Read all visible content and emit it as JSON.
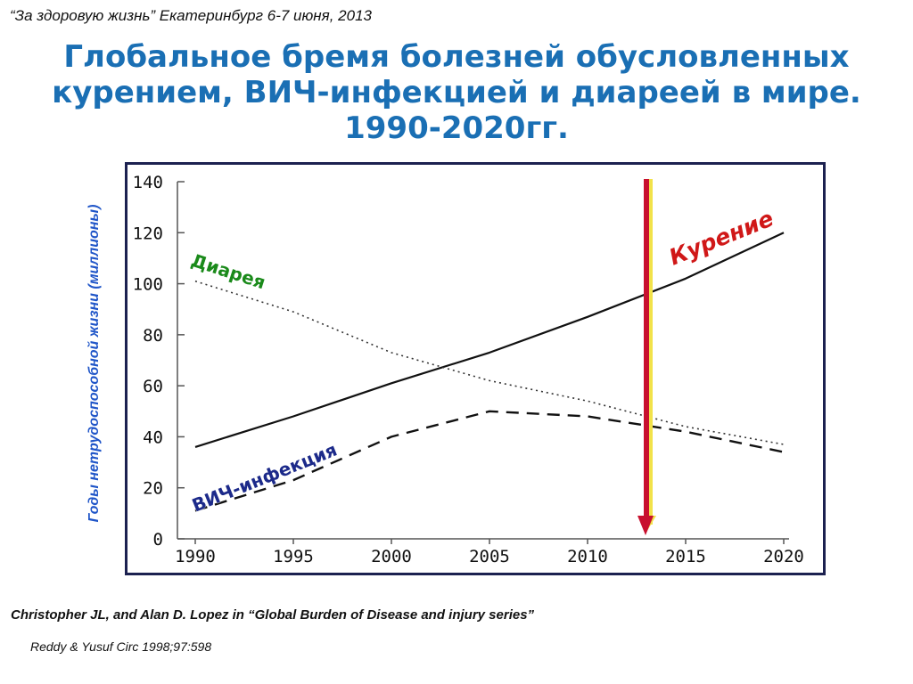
{
  "header": {
    "event": "“За здоровую жизнь”  Екатеринбург 6-7 июня, 2013"
  },
  "title": {
    "line1": "Глобальное бремя болезней обусловленных",
    "line2": "курением, ВИЧ-инфекцией и диареей в мире.",
    "line3": "1990-2020гг."
  },
  "chart_data": {
    "type": "line",
    "ylabel": "Годы нетрудоспособной жизни (миллионы)",
    "xlabel": "",
    "x": [
      1990,
      1995,
      2000,
      2005,
      2010,
      2015,
      2020
    ],
    "x_ticks": [
      "1990",
      "1995",
      "2000",
      "2005",
      "2010",
      "2015",
      "2020"
    ],
    "y_ticks": [
      "0",
      "20",
      "40",
      "60",
      "80",
      "100",
      "120",
      "140"
    ],
    "xlim": [
      1990,
      2020
    ],
    "ylim": [
      0,
      140
    ],
    "grid": false,
    "series": [
      {
        "name": "Курение",
        "style": "solid",
        "color": "#111111",
        "label_color": "#d01818",
        "points": [
          [
            1990,
            36
          ],
          [
            1995,
            48
          ],
          [
            2000,
            61
          ],
          [
            2005,
            73
          ],
          [
            2010,
            87
          ],
          [
            2015,
            102
          ],
          [
            2020,
            120
          ]
        ]
      },
      {
        "name": "Диарея",
        "style": "dotted",
        "color": "#333333",
        "label_color": "#1a8a1a",
        "points": [
          [
            1990,
            101
          ],
          [
            1995,
            89
          ],
          [
            2000,
            73
          ],
          [
            2005,
            62
          ],
          [
            2010,
            54
          ],
          [
            2015,
            44
          ],
          [
            2020,
            37
          ]
        ]
      },
      {
        "name": "ВИЧ-инфекция",
        "style": "dashed",
        "color": "#111111",
        "label_color": "#1c2a8a",
        "points": [
          [
            1990,
            11
          ],
          [
            1995,
            23
          ],
          [
            2000,
            40
          ],
          [
            2005,
            50
          ],
          [
            2010,
            48
          ],
          [
            2015,
            42
          ],
          [
            2020,
            34
          ]
        ]
      }
    ],
    "marker": {
      "x": 2013,
      "direction": "down",
      "color": "#c8102e",
      "edge_color": "#f2e24a"
    }
  },
  "footer": {
    "citation": "Christopher JL, and Alan D. Lopez in “Global Burden of Disease and injury series”",
    "reference": "Reddy & Yusuf Circ 1998;97:598"
  }
}
